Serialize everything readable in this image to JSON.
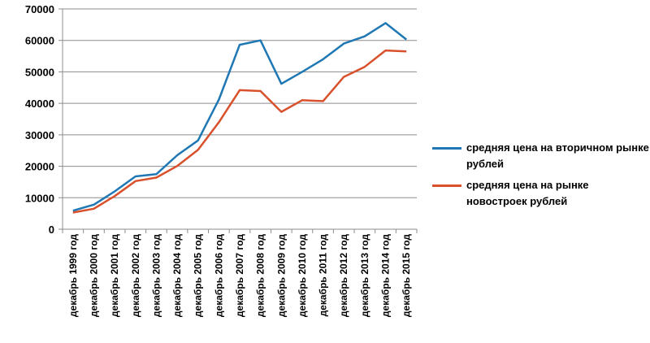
{
  "chart_data": {
    "type": "line",
    "x": [
      "декабрь 1999 год",
      "декабрь 2000 год",
      "декабрь 2001 год",
      "декабрь 2002 год",
      "декабрь 2003 год",
      "декабрь 2004 год",
      "декабрь 2005 год",
      "декабрь 2006 год",
      "декабрь 2007 год",
      "декабрь 2008 год",
      "декабрь 2009 год",
      "декабрь 2010 год",
      "декабрь 2011 год",
      "декабрь 2012 год",
      "декабрь 2013 год",
      "декабрь 2014 год",
      "декабрь 2015 год"
    ],
    "series": [
      {
        "name": "средняя цена на вторичном рынке  рублей",
        "color": "#1f77b4",
        "values": [
          5900,
          7800,
          12000,
          16800,
          17500,
          23500,
          28200,
          41200,
          58600,
          60000,
          46200,
          50000,
          54000,
          59000,
          61300,
          65500,
          60300
        ]
      },
      {
        "name": "средняя цена на рынке новостроек рублей",
        "color": "#d9512c",
        "values": [
          5300,
          6500,
          10500,
          15300,
          16400,
          20100,
          25200,
          34000,
          44200,
          43900,
          37300,
          41000,
          40700,
          48400,
          51600,
          56800,
          56500
        ]
      }
    ],
    "yticks": [
      "0",
      "10000",
      "20000",
      "30000",
      "40000",
      "50000",
      "60000",
      "70000"
    ],
    "ylim": [
      0,
      70000
    ],
    "grid": true,
    "legend_position": "right",
    "title": "",
    "xlabel": "",
    "ylabel": ""
  }
}
